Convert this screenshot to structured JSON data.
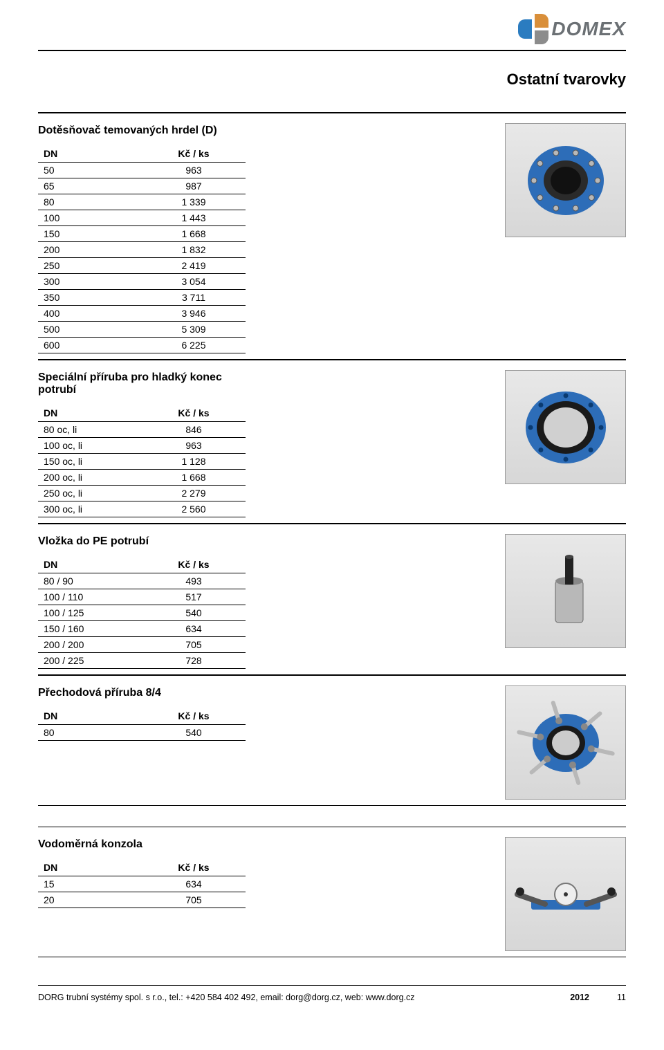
{
  "brand": {
    "name": "DOMEX"
  },
  "page_title": "Ostatní tvarovky",
  "header": {
    "col_dn": "DN",
    "col_price": "Kč / ks"
  },
  "sections": [
    {
      "title": "Dotěsňovač temovaných hrdel (D)",
      "rows": [
        [
          "50",
          "963"
        ],
        [
          "65",
          "987"
        ],
        [
          "80",
          "1 339"
        ],
        [
          "100",
          "1 443"
        ],
        [
          "150",
          "1 668"
        ],
        [
          "200",
          "1 832"
        ],
        [
          "250",
          "2 419"
        ],
        [
          "300",
          "3 054"
        ],
        [
          "350",
          "3 711"
        ],
        [
          "400",
          "3 946"
        ],
        [
          "500",
          "5 309"
        ],
        [
          "600",
          "6 225"
        ]
      ],
      "image": "flange-coupling-blue"
    },
    {
      "title": "Speciální příruba pro hladký konec potrubí",
      "rows": [
        [
          "80 oc, li",
          "846"
        ],
        [
          "100 oc, li",
          "963"
        ],
        [
          "150 oc, li",
          "1 128"
        ],
        [
          "200 oc, li",
          "1 668"
        ],
        [
          "250 oc, li",
          "2 279"
        ],
        [
          "300 oc, li",
          "2 560"
        ]
      ],
      "image": "blue-ring-flange"
    },
    {
      "title": "Vložka do PE potrubí",
      "rows": [
        [
          "80 / 90",
          "493"
        ],
        [
          "100 / 110",
          "517"
        ],
        [
          "100 / 125",
          "540"
        ],
        [
          "150 / 160",
          "634"
        ],
        [
          "200 / 200",
          "705"
        ],
        [
          "200 / 225",
          "728"
        ]
      ],
      "image": "pe-insert-sleeve"
    },
    {
      "title": "Přechodová příruba 8/4",
      "rows": [
        [
          "80",
          "540"
        ]
      ],
      "image": "transition-flange-bolts"
    },
    {
      "title": "Vodoměrná konzola",
      "rows": [
        [
          "15",
          "634"
        ],
        [
          "20",
          "705"
        ]
      ],
      "image": "water-meter-bracket"
    }
  ],
  "footer": {
    "company": "DORG trubní systémy spol. s r.o., tel.: +420 584 402 492, email: dorg@dorg.cz, web: www.dorg.cz",
    "year": "2012",
    "page_num": "11"
  },
  "colors": {
    "brand_blue": "#2b7cc0",
    "brand_orange": "#d98f3a",
    "brand_grey": "#6b7074",
    "part_blue": "#2d6db8",
    "steel": "#b8b8b8"
  }
}
